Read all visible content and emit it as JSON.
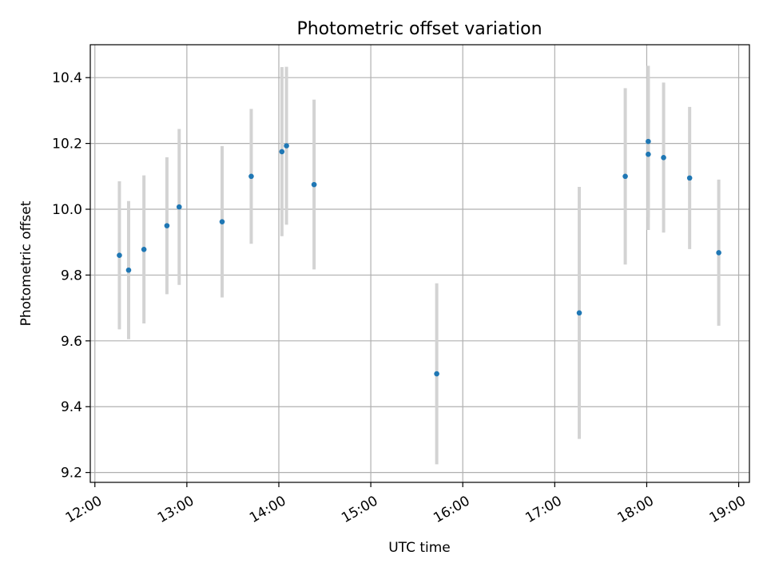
{
  "chart_data": {
    "type": "scatter",
    "title": "Photometric offset variation",
    "xlabel": "UTC time",
    "ylabel": "Photometric offset",
    "xlim": [
      "11:57",
      "19:07"
    ],
    "ylim": [
      9.17,
      10.5
    ],
    "x_ticks": [
      "12:00",
      "13:00",
      "14:00",
      "15:00",
      "16:00",
      "17:00",
      "18:00",
      "19:00"
    ],
    "y_ticks": [
      "9.2",
      "9.4",
      "9.6",
      "9.8",
      "10.0",
      "10.2",
      "10.4"
    ],
    "grid": true,
    "x_tick_rotation_deg": 30,
    "marker_color": "#1f77b4",
    "errorbar_color": "#d3d3d3",
    "points": [
      {
        "x": "12:16",
        "y": 9.86,
        "err": 0.225
      },
      {
        "x": "12:22",
        "y": 9.815,
        "err": 0.21
      },
      {
        "x": "12:32",
        "y": 9.878,
        "err": 0.225
      },
      {
        "x": "12:47",
        "y": 9.95,
        "err": 0.208
      },
      {
        "x": "12:55",
        "y": 10.007,
        "err": 0.237
      },
      {
        "x": "13:23",
        "y": 9.962,
        "err": 0.23
      },
      {
        "x": "13:42",
        "y": 10.1,
        "err": 0.205
      },
      {
        "x": "14:02",
        "y": 10.175,
        "err": 0.257
      },
      {
        "x": "14:05",
        "y": 10.193,
        "err": 0.24
      },
      {
        "x": "14:23",
        "y": 10.075,
        "err": 0.258
      },
      {
        "x": "15:43",
        "y": 9.5,
        "err": 0.275
      },
      {
        "x": "17:16",
        "y": 9.685,
        "err": 0.383
      },
      {
        "x": "17:46",
        "y": 10.1,
        "err": 0.268
      },
      {
        "x": "18:01",
        "y": 10.206,
        "err": 0.23
      },
      {
        "x": "18:01",
        "y": 10.167,
        "err": 0.23
      },
      {
        "x": "18:11",
        "y": 10.157,
        "err": 0.228
      },
      {
        "x": "18:28",
        "y": 10.095,
        "err": 0.216
      },
      {
        "x": "18:47",
        "y": 9.868,
        "err": 0.222
      }
    ]
  }
}
